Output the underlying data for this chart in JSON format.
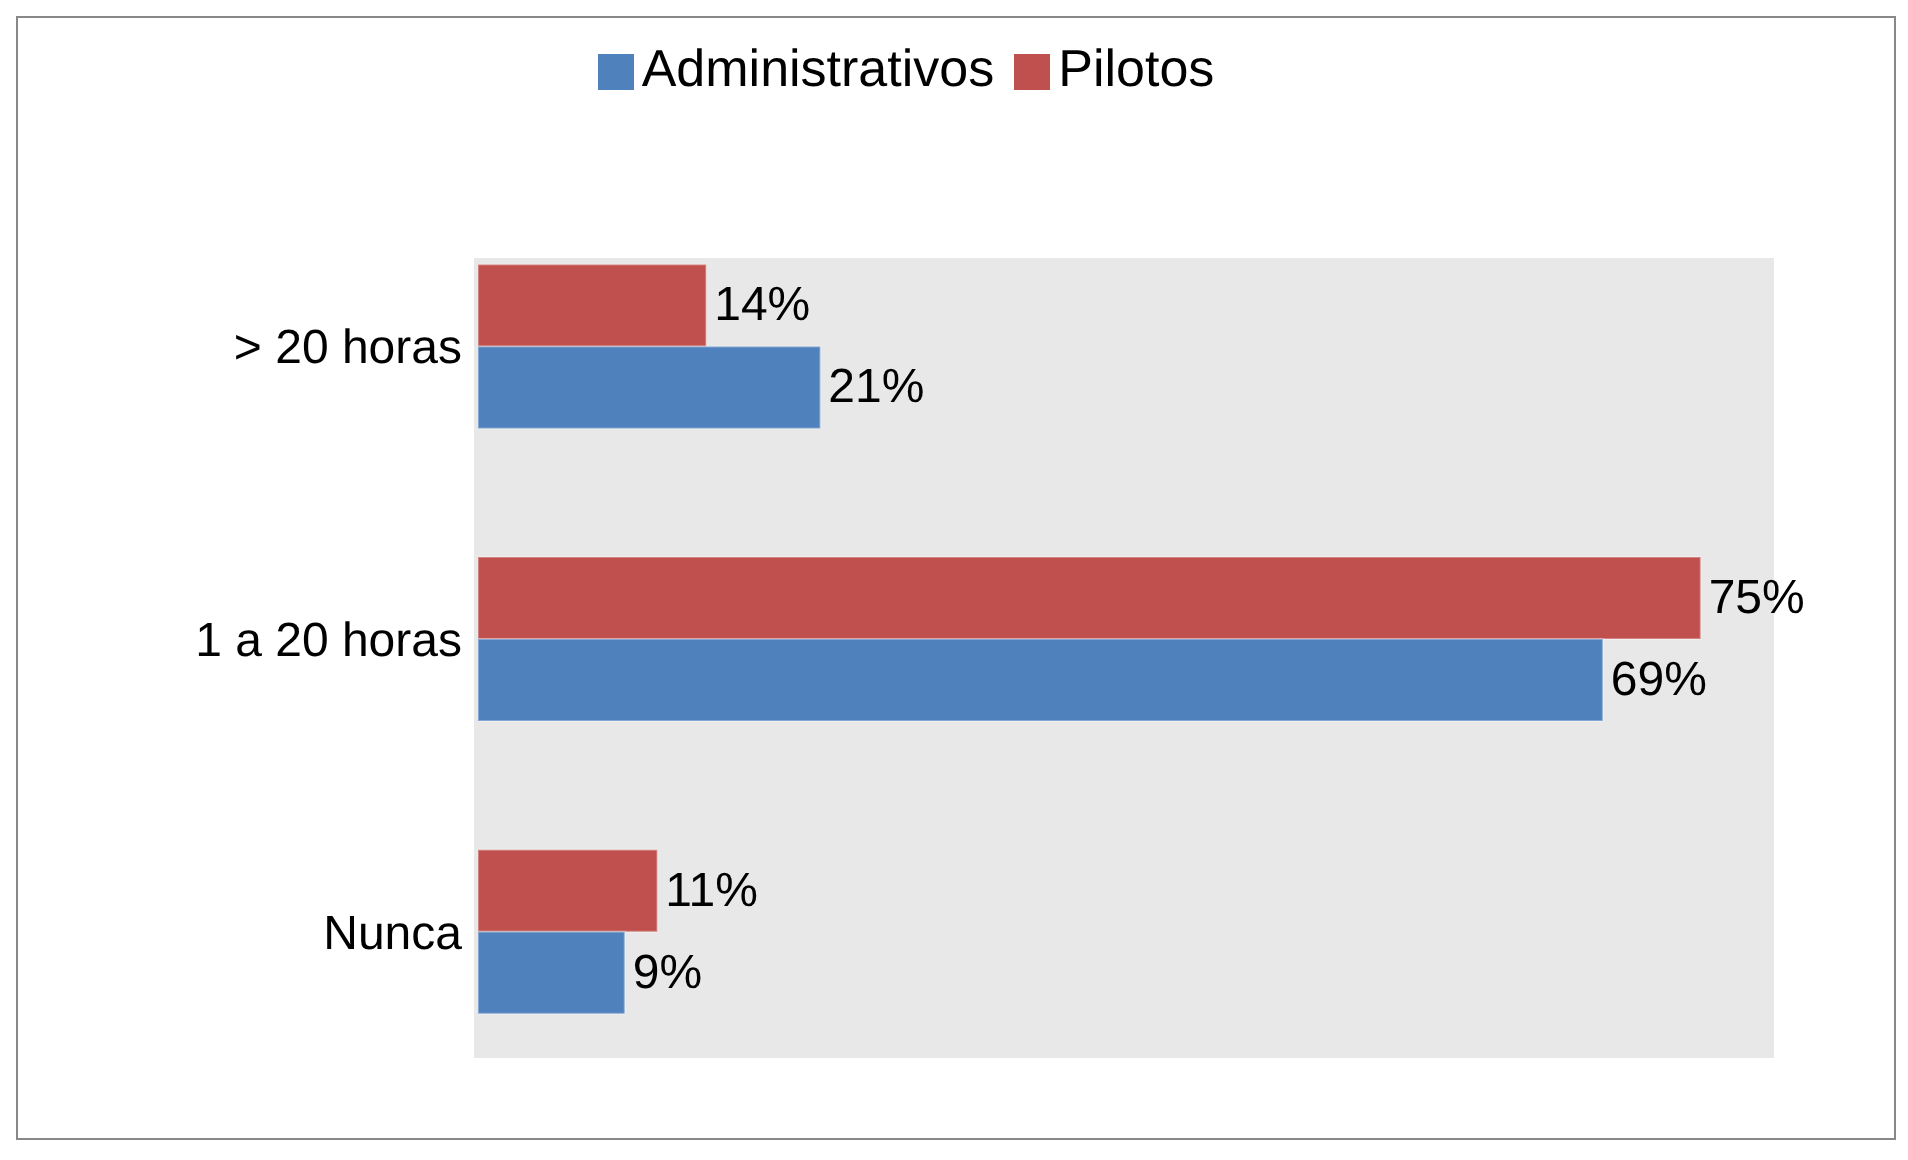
{
  "chart_data": {
    "type": "bar",
    "orientation": "horizontal",
    "categories": [
      "> 20 horas",
      "1 a 20 horas",
      "Nunca"
    ],
    "series": [
      {
        "name": "Pilotos",
        "color": "#c0504d",
        "values": [
          14,
          75,
          11
        ],
        "value_labels": [
          "14%",
          "75%",
          "11%"
        ]
      },
      {
        "name": "Administrativos",
        "color": "#4f81bd",
        "values": [
          21,
          69,
          9
        ],
        "value_labels": [
          "21%",
          "69%",
          "9%"
        ]
      }
    ],
    "legend": "top",
    "grid": false
  }
}
